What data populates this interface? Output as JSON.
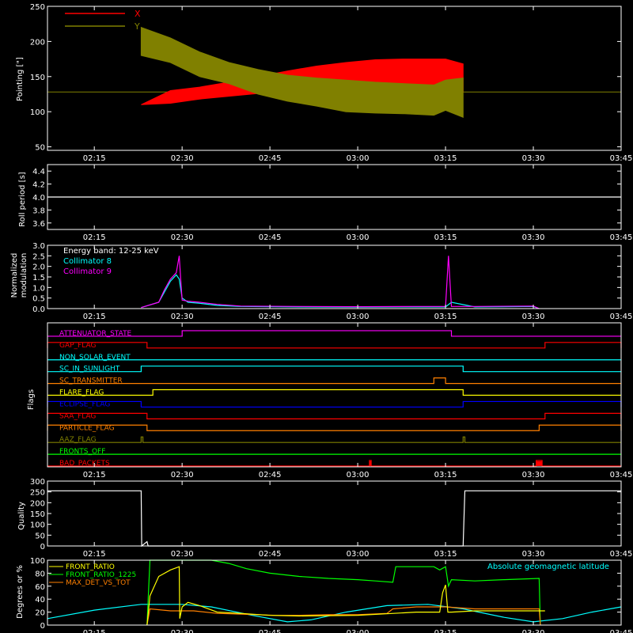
{
  "figure": {
    "x_tick_labels": [
      "02:15",
      "02:30",
      "02:45",
      "03:00",
      "03:15",
      "03:30",
      "03:45"
    ],
    "x_tick_values_min": [
      135,
      150,
      165,
      180,
      195,
      210,
      225
    ],
    "x_range_min": [
      127,
      225
    ],
    "colors": {
      "background": "#000000",
      "axes": "#ffffff",
      "red": "#ff0000",
      "olive": "#808000",
      "cyan": "#00ffff",
      "magenta": "#ff00ff",
      "yellow": "#ffff00",
      "green": "#00ff00",
      "orange": "#ff8000",
      "blue": "#0000ff",
      "white": "#ffffff"
    }
  },
  "chart_data": [
    {
      "type": "area",
      "ylabel": "Pointing [\"]",
      "ylim": [
        45,
        250
      ],
      "y_ticks": [
        50,
        100,
        150,
        200,
        250
      ],
      "legend": [
        {
          "name": "X",
          "color": "#ff0000"
        },
        {
          "name": "Y",
          "color": "#808000"
        }
      ],
      "baseline": 128,
      "active_range_min": [
        143,
        198
      ],
      "x_envelope": {
        "x_min": [
          143,
          148,
          153,
          158,
          163,
          168,
          173,
          178,
          183,
          188,
          193,
          195,
          198
        ],
        "low": [
          110,
          112,
          118,
          122,
          126,
          130,
          132,
          134,
          136,
          136,
          136,
          130,
          128
        ],
        "high": [
          110,
          130,
          135,
          142,
          150,
          158,
          165,
          170,
          174,
          175,
          175,
          175,
          168
        ]
      },
      "y_envelope": {
        "x_min": [
          143,
          148,
          153,
          158,
          163,
          168,
          173,
          178,
          183,
          188,
          193,
          195,
          198
        ],
        "low": [
          180,
          170,
          150,
          140,
          125,
          115,
          108,
          100,
          98,
          97,
          95,
          102,
          92
        ],
        "high": [
          220,
          205,
          185,
          170,
          160,
          152,
          148,
          145,
          142,
          140,
          138,
          145,
          148
        ]
      }
    },
    {
      "type": "line",
      "ylabel": "Roll period [s]",
      "ylim": [
        3.5,
        4.5
      ],
      "y_ticks": [
        3.6,
        3.8,
        4.0,
        4.2,
        4.4
      ],
      "series": [
        {
          "x": [
            127,
            225
          ],
          "y": [
            4.0,
            4.0
          ]
        }
      ]
    },
    {
      "type": "line",
      "ylabel": "Normalized modulation",
      "ylim": [
        0,
        3.0
      ],
      "y_ticks": [
        0.0,
        0.5,
        1.0,
        1.5,
        2.0,
        2.5,
        3.0
      ],
      "annotation": "Energy band: 12-25 keV",
      "series": [
        {
          "name": "Collimator 8",
          "color": "#00ffff",
          "x": [
            143,
            146,
            147,
            148,
            149,
            149.5,
            150,
            151,
            153,
            156,
            160,
            170,
            180,
            190,
            195,
            196,
            200,
            210,
            211
          ],
          "y": [
            0.05,
            0.3,
            0.8,
            1.3,
            1.6,
            1.4,
            0.5,
            0.3,
            0.25,
            0.15,
            0.1,
            0.08,
            0.07,
            0.08,
            0.08,
            0.3,
            0.08,
            0.1,
            0.0
          ]
        },
        {
          "name": "Collimator 9",
          "color": "#ff00ff",
          "x": [
            143,
            146,
            147,
            148,
            149,
            149.5,
            149.8,
            150,
            151,
            153,
            156,
            160,
            170,
            180,
            190,
            195,
            195.5,
            196,
            200,
            210,
            211
          ],
          "y": [
            0.05,
            0.3,
            0.9,
            1.4,
            1.7,
            2.5,
            1.2,
            0.4,
            0.35,
            0.3,
            0.2,
            0.12,
            0.1,
            0.09,
            0.1,
            0.1,
            2.5,
            0.1,
            0.1,
            0.12,
            0.0
          ]
        }
      ]
    },
    {
      "type": "line",
      "ylabel": "Flags",
      "flags": [
        {
          "label": "ATTENUATOR_STATE",
          "color": "#ff00ff",
          "high": [
            [
              150,
              196
            ]
          ]
        },
        {
          "label": "GAP_FLAG",
          "color": "#ff0000",
          "high": [
            [
              127,
              144
            ],
            [
              212,
              225
            ]
          ]
        },
        {
          "label": "NON_SOLAR_EVENT",
          "color": "#00ffff",
          "high": []
        },
        {
          "label": "SC_IN_SUNLIGHT",
          "color": "#00ffff",
          "high": [
            [
              143,
              198
            ]
          ]
        },
        {
          "label": "SC_TRANSMITTER",
          "color": "#ff8000",
          "high": [
            [
              193,
              195
            ]
          ]
        },
        {
          "label": "FLARE_FLAG",
          "color": "#ffff00",
          "high": [
            [
              145,
              198
            ]
          ]
        },
        {
          "label": "ECLIPSE_FLAG",
          "color": "#0000ff",
          "high": [
            [
              127,
              143
            ],
            [
              198,
              225
            ]
          ]
        },
        {
          "label": "SAA_FLAG",
          "color": "#ff0000",
          "high": [
            [
              127,
              144
            ],
            [
              212,
              225
            ]
          ]
        },
        {
          "label": "PARTICLE_FLAG",
          "color": "#ff8000",
          "high": [
            [
              127,
              144
            ],
            [
              211,
              225
            ]
          ]
        },
        {
          "label": "AAZ_FLAG",
          "color": "#808000",
          "high": [
            [
              143,
              143.3
            ],
            [
              198,
              198.3
            ]
          ]
        },
        {
          "label": "FRONTS_OFF",
          "color": "#00ff00",
          "high": []
        },
        {
          "label": "BAD_PACKETS",
          "color": "#ff0000",
          "high": [
            [
              182,
              182.3
            ],
            [
              210.5,
              211.5
            ]
          ]
        }
      ]
    },
    {
      "type": "line",
      "ylabel": "Quality",
      "ylim": [
        0,
        300
      ],
      "y_ticks": [
        0,
        50,
        100,
        150,
        200,
        250,
        300
      ],
      "series": [
        {
          "x": [
            127,
            143,
            143.1,
            144,
            144.2,
            145,
            198,
            198.3,
            225
          ],
          "y": [
            255,
            255,
            0,
            20,
            0,
            0,
            0,
            255,
            255
          ]
        }
      ]
    },
    {
      "type": "line",
      "ylabel": "Degrees or %",
      "ylim": [
        0,
        100
      ],
      "y_ticks": [
        0,
        20,
        40,
        60,
        80,
        100
      ],
      "annotation": "Absolute geomagnetic latitude",
      "series": [
        {
          "name": "FRONT_RATIO",
          "color": "#ffff00",
          "x": [
            144,
            144.5,
            146,
            148,
            149.5,
            149.6,
            150,
            151,
            153,
            156,
            160,
            165,
            170,
            180,
            190,
            194,
            194.5,
            195,
            195.4,
            196,
            200,
            212
          ],
          "y": [
            0,
            45,
            75,
            85,
            90,
            10,
            28,
            35,
            30,
            20,
            18,
            15,
            14,
            15,
            20,
            20,
            50,
            62,
            20,
            20,
            22,
            22
          ]
        },
        {
          "name": "FRONT_RATIO_1225",
          "color": "#00ff00",
          "x": [
            144,
            144.5,
            146,
            148,
            150,
            152,
            155,
            158,
            161,
            165,
            170,
            175,
            180,
            183,
            186,
            186.5,
            190,
            193,
            194,
            195,
            195.5,
            196,
            200,
            205,
            211,
            211.2
          ],
          "y": [
            0,
            100,
            100,
            100,
            100,
            100,
            100,
            95,
            87,
            80,
            75,
            72,
            70,
            68,
            66,
            90,
            90,
            90,
            85,
            90,
            60,
            70,
            68,
            70,
            72,
            0
          ]
        },
        {
          "name": "MAX_DET_VS_TOT",
          "color": "#ff8000",
          "x": [
            144,
            144.5,
            148,
            152,
            156,
            160,
            166,
            170,
            175,
            180,
            185,
            186,
            190,
            195,
            200,
            205,
            211,
            211.2
          ],
          "y": [
            0,
            25,
            22,
            22,
            18,
            17,
            15,
            15,
            16,
            16,
            18,
            25,
            28,
            28,
            25,
            25,
            25,
            0
          ]
        },
        {
          "name": "Absolute geomagnetic latitude",
          "color": "#00ffff",
          "x": [
            127,
            135,
            143,
            150,
            155,
            162,
            168,
            172,
            178,
            185,
            192,
            198,
            205,
            210,
            215,
            220,
            225
          ],
          "y": [
            10,
            23,
            32,
            32,
            28,
            15,
            5,
            8,
            20,
            30,
            32,
            25,
            12,
            5,
            10,
            20,
            28
          ]
        }
      ]
    }
  ]
}
